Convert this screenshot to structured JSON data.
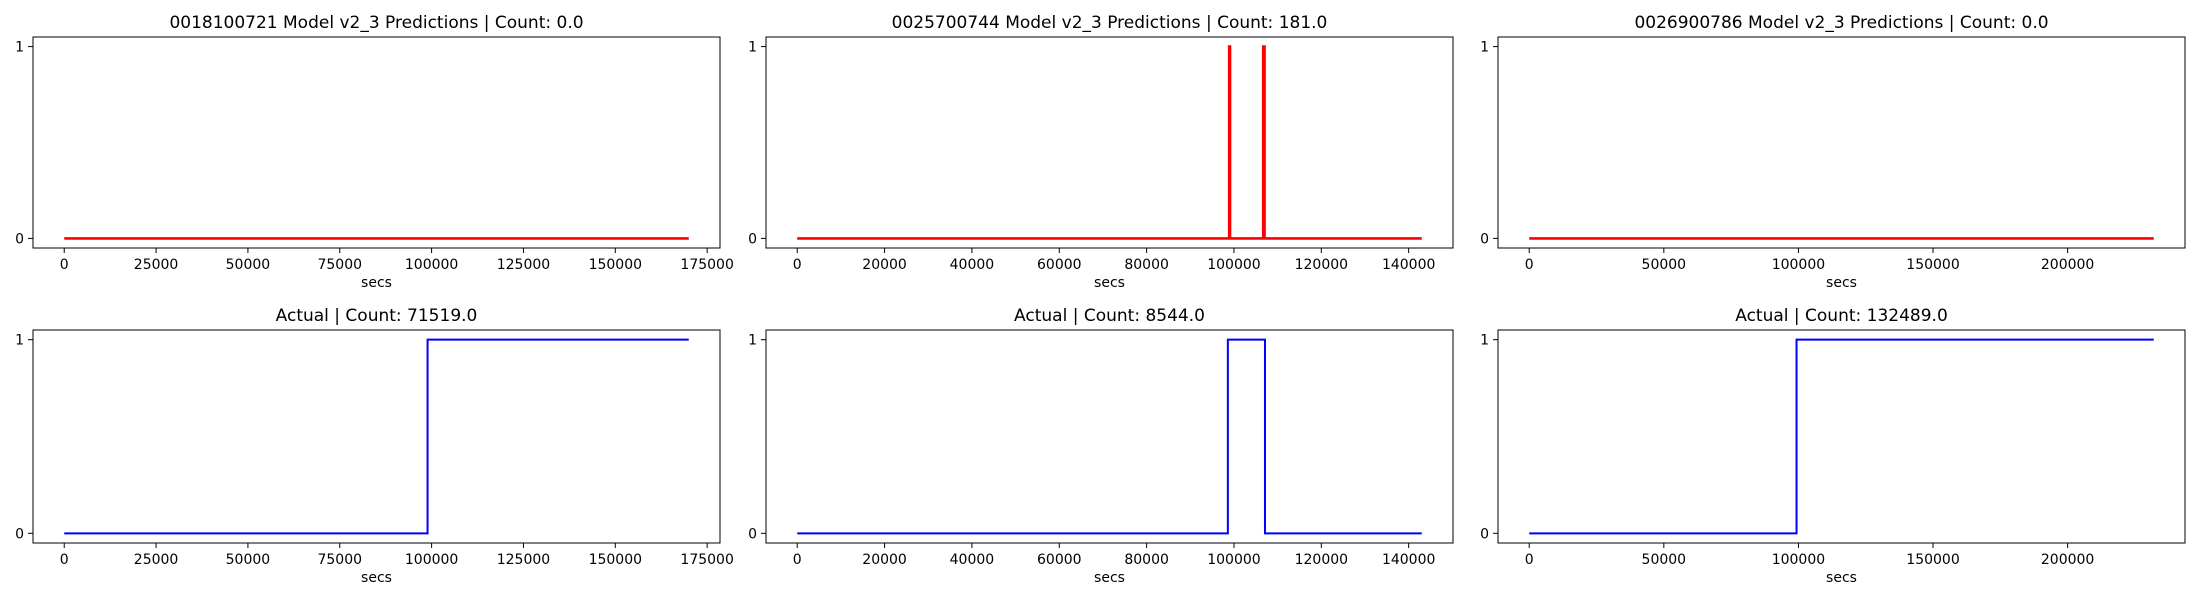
{
  "chart_data": [
    {
      "type": "line",
      "title": "0018100721 Model v2_3 Predictions | Count: 0.0",
      "xlabel": "secs",
      "ylabel": "",
      "xlim": [
        -8500,
        178500
      ],
      "ylim": [
        -0.05,
        1.05
      ],
      "xticks": [
        0,
        25000,
        50000,
        75000,
        100000,
        125000,
        150000,
        175000
      ],
      "xtick_labels": [
        "0",
        "25000",
        "50000",
        "75000",
        "100000",
        "125000",
        "150000",
        "175000"
      ],
      "yticks": [
        0,
        1
      ],
      "ytick_labels": [
        "0",
        "1"
      ],
      "grid": false,
      "series": [
        {
          "color": "#ff0000",
          "x": [
            0,
            170000
          ],
          "y": [
            0,
            0
          ]
        }
      ]
    },
    {
      "type": "line",
      "title": "0025700744 Model v2_3 Predictions | Count: 181.0",
      "xlabel": "secs",
      "ylabel": "",
      "xlim": [
        -7150,
        150150
      ],
      "ylim": [
        -0.05,
        1.05
      ],
      "xticks": [
        0,
        20000,
        40000,
        60000,
        80000,
        100000,
        120000,
        140000
      ],
      "xtick_labels": [
        "0",
        "20000",
        "40000",
        "60000",
        "80000",
        "100000",
        "120000",
        "140000"
      ],
      "yticks": [
        0,
        1
      ],
      "ytick_labels": [
        "0",
        "1"
      ],
      "grid": false,
      "series": [
        {
          "color": "#ff0000",
          "x": [
            0,
            98900,
            98900,
            99100,
            99100,
            106700,
            106700,
            107000,
            107000,
            143000
          ],
          "y": [
            0,
            0,
            1,
            1,
            0,
            0,
            1,
            1,
            0,
            0
          ]
        }
      ]
    },
    {
      "type": "line",
      "title": "0026900786 Model v2_3 Predictions | Count: 0.0",
      "xlabel": "secs",
      "ylabel": "",
      "xlim": [
        -11600,
        243600
      ],
      "ylim": [
        -0.05,
        1.05
      ],
      "xticks": [
        0,
        50000,
        100000,
        150000,
        200000
      ],
      "xtick_labels": [
        "0",
        "50000",
        "100000",
        "150000",
        "200000"
      ],
      "yticks": [
        0,
        1
      ],
      "ytick_labels": [
        "0",
        "1"
      ],
      "grid": false,
      "series": [
        {
          "color": "#ff0000",
          "x": [
            0,
            232000
          ],
          "y": [
            0,
            0
          ]
        }
      ]
    },
    {
      "type": "line",
      "title": "Actual | Count: 71519.0",
      "xlabel": "secs",
      "ylabel": "",
      "xlim": [
        -8500,
        178500
      ],
      "ylim": [
        -0.05,
        1.05
      ],
      "xticks": [
        0,
        25000,
        50000,
        75000,
        100000,
        125000,
        150000,
        175000
      ],
      "xtick_labels": [
        "0",
        "25000",
        "50000",
        "75000",
        "100000",
        "125000",
        "150000",
        "175000"
      ],
      "yticks": [
        0,
        1
      ],
      "ytick_labels": [
        "0",
        "1"
      ],
      "grid": false,
      "series": [
        {
          "color": "#0000ff",
          "x": [
            0,
            98900,
            98900,
            170000
          ],
          "y": [
            0,
            0,
            1,
            1
          ]
        }
      ]
    },
    {
      "type": "line",
      "title": "Actual | Count: 8544.0",
      "xlabel": "secs",
      "ylabel": "",
      "xlim": [
        -7150,
        150150
      ],
      "ylim": [
        -0.05,
        1.05
      ],
      "xticks": [
        0,
        20000,
        40000,
        60000,
        80000,
        100000,
        120000,
        140000
      ],
      "xtick_labels": [
        "0",
        "20000",
        "40000",
        "60000",
        "80000",
        "100000",
        "120000",
        "140000"
      ],
      "yticks": [
        0,
        1
      ],
      "ytick_labels": [
        "0",
        "1"
      ],
      "grid": false,
      "series": [
        {
          "color": "#0000ff",
          "x": [
            0,
            98600,
            98600,
            107100,
            107100,
            143000
          ],
          "y": [
            0,
            0,
            1,
            1,
            0,
            0
          ]
        }
      ]
    },
    {
      "type": "line",
      "title": "Actual | Count: 132489.0",
      "xlabel": "secs",
      "ylabel": "",
      "xlim": [
        -11600,
        243600
      ],
      "ylim": [
        -0.05,
        1.05
      ],
      "xticks": [
        0,
        50000,
        100000,
        150000,
        200000
      ],
      "xtick_labels": [
        "0",
        "50000",
        "100000",
        "150000",
        "200000"
      ],
      "yticks": [
        0,
        1
      ],
      "ytick_labels": [
        "0",
        "1"
      ],
      "grid": false,
      "series": [
        {
          "color": "#0000ff",
          "x": [
            0,
            99300,
            99300,
            232000
          ],
          "y": [
            0,
            0,
            1,
            1
          ]
        }
      ]
    }
  ]
}
